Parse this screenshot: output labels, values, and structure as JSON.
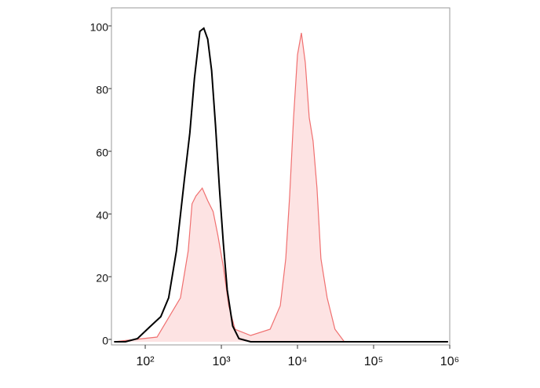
{
  "chart_data": {
    "type": "area",
    "xscale": "log",
    "xlim": [
      36,
      1000000
    ],
    "ylim": [
      -1,
      106.5
    ],
    "xticks": [
      {
        "value": 100,
        "label": "10²"
      },
      {
        "value": 1000,
        "label": "10³"
      },
      {
        "value": 10000,
        "label": "10⁴"
      },
      {
        "value": 100000,
        "label": "10⁵"
      },
      {
        "value": 1000000,
        "label": "10⁶"
      }
    ],
    "yticks": [
      0,
      20,
      40,
      60,
      80,
      100
    ],
    "series": [
      {
        "kind": "line",
        "color": "#000000",
        "x": [
          39,
          55,
          79,
          112,
          160,
          203,
          257,
          326,
          385,
          443,
          522,
          588,
          662,
          745,
          838,
          943,
          1061,
          1194,
          1409,
          1702,
          2425,
          6237,
          950000
        ],
        "values": [
          0,
          0,
          1,
          4.5,
          8,
          14,
          29,
          51.5,
          66.5,
          84,
          99,
          100,
          96.5,
          86.5,
          69,
          49,
          31.5,
          16.5,
          5,
          1,
          0,
          0,
          0
        ]
      },
      {
        "kind": "area",
        "color": "#f07070",
        "fill": "#fde3e3",
        "x": [
          39,
          143,
          290,
          367,
          412,
          464,
          561,
          662,
          780,
          899,
          1061,
          1250,
          1510,
          2425,
          4375,
          5943,
          7015,
          7889,
          8883,
          10000,
          11250,
          12670,
          14260,
          16030,
          18040,
          20320,
          24550,
          31060,
          41210,
          66220,
          950000
        ],
        "values": [
          0,
          1.5,
          14,
          29,
          44,
          46.5,
          49,
          45,
          41.5,
          34,
          24,
          11.5,
          4,
          2,
          4,
          11.5,
          26.5,
          46.5,
          71.5,
          91.5,
          98.5,
          89,
          71.5,
          64,
          49,
          26.5,
          14,
          4,
          0,
          0,
          0
        ]
      }
    ]
  }
}
